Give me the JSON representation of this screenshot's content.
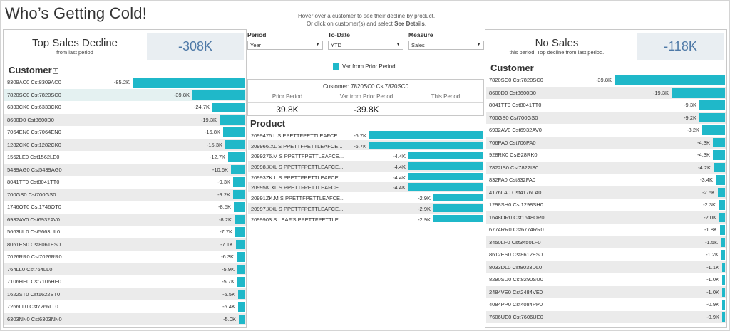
{
  "title": "Who’s Getting Cold!",
  "instructions": {
    "line1": "Hover over a customer to see their decline by product.",
    "line2_prefix": "Or click on customer(s) and select ",
    "line2_bold": "See Details",
    "line2_suffix": "."
  },
  "left": {
    "kpi_title": "Top Sales Decline",
    "kpi_sub": "from last period",
    "kpi_value": "-308K",
    "header": "Customer",
    "sort_icon": "sort-icon",
    "scale_max": 85.2,
    "rows": [
      {
        "label": "8309AC0  Cst8309AC0",
        "value": "-85.2K",
        "num": 85.2
      },
      {
        "label": "7820SC0  Cst7820SC0",
        "value": "-39.8K",
        "num": 39.8
      },
      {
        "label": "6333CK0  Cst6333CK0",
        "value": "-24.7K",
        "num": 24.7
      },
      {
        "label": "8600D0  Cst8600D0",
        "value": "-19.3K",
        "num": 19.3
      },
      {
        "label": "7064EN0  Cst7064EN0",
        "value": "-16.8K",
        "num": 16.8
      },
      {
        "label": "1282CK0  Cst1282CK0",
        "value": "-15.3K",
        "num": 15.3
      },
      {
        "label": "1562LE0  Cst1562LE0",
        "value": "-12.7K",
        "num": 12.7
      },
      {
        "label": "5439AG0  Cst5439AG0",
        "value": "-10.6K",
        "num": 10.6
      },
      {
        "label": "8041TT0  Cst8041TT0",
        "value": "-9.3K",
        "num": 9.3
      },
      {
        "label": "700GS0  Cst700GS0",
        "value": "-9.2K",
        "num": 9.2
      },
      {
        "label": "1746OT0  Cst1746OT0",
        "value": "-8.5K",
        "num": 8.5
      },
      {
        "label": "6932AV0  Cst6932AV0",
        "value": "-8.2K",
        "num": 8.2
      },
      {
        "label": "5663UL0  Cst5663UL0",
        "value": "-7.7K",
        "num": 7.7
      },
      {
        "label": "8061ES0  Cst8061ES0",
        "value": "-7.1K",
        "num": 7.1
      },
      {
        "label": "7026RR0  Cst7026RR0",
        "value": "-6.3K",
        "num": 6.3
      },
      {
        "label": "764LL0  Cst764LL0",
        "value": "-5.9K",
        "num": 5.9
      },
      {
        "label": "7106HE0  Cst7106HE0",
        "value": "-5.7K",
        "num": 5.7
      },
      {
        "label": "1622ST0  Cst1622ST0",
        "value": "-5.5K",
        "num": 5.5
      },
      {
        "label": "7266LL0  Cst7266LL0",
        "value": "-5.4K",
        "num": 5.4
      },
      {
        "label": "6303NN0  Cst6303NN0",
        "value": "-5.0K",
        "num": 5.0
      }
    ]
  },
  "filters": [
    {
      "label": "Period",
      "value": "Year"
    },
    {
      "label": "To-Date",
      "value": "YTD"
    },
    {
      "label": "Measure",
      "value": "Sales"
    }
  ],
  "legend": "Var from Prior Period",
  "detail": {
    "customer": "Customer:  7820SC0  Cst7820SC0",
    "col1": "Prior Period",
    "col2": "Var from Prior Period",
    "col3": "This Period",
    "val1": "39.8K",
    "val2": "-39.8K",
    "val3": ""
  },
  "product": {
    "header": "Product",
    "scale_max": 6.7,
    "rows": [
      {
        "label": "2099476.L   S PPETTFPETTLEAFCE...",
        "value": "-6.7K",
        "num": 6.7
      },
      {
        "label": "209966.XL   S PPETTFPETTLEAFCE...",
        "value": "-6.7K",
        "num": 6.7
      },
      {
        "label": "2099276.M   S PPETTFPETTLEAFCE...",
        "value": "-4.4K",
        "num": 4.4
      },
      {
        "label": "20998.XXL   S PPETTFPETTLEAFCE...",
        "value": "-4.4K",
        "num": 4.4
      },
      {
        "label": "20993ZK.L   S PPETTFPETTLEAFCE...",
        "value": "-4.4K",
        "num": 4.4
      },
      {
        "label": "20995K.XL   S PPETTFPETTLEAFCE...",
        "value": "-4.4K",
        "num": 4.4
      },
      {
        "label": "20991ZK.M   S PPETTFPETTLEAFCE...",
        "value": "-2.9K",
        "num": 2.9
      },
      {
        "label": "20997.XXL   S PPETTFPETTLEAFCE...",
        "value": "-2.9K",
        "num": 2.9
      },
      {
        "label": "2099903.S   LEAF'S PPETTFPETTLE...",
        "value": "-2.9K",
        "num": 2.9
      }
    ]
  },
  "right": {
    "kpi_title": "No Sales",
    "kpi_sub": "this period. Top decline from last period.",
    "kpi_value": "-118K",
    "header": "Customer",
    "scale_max": 39.8,
    "rows": [
      {
        "label": "7820SC0  Cst7820SC0",
        "value": "-39.8K",
        "num": 39.8
      },
      {
        "label": "8600D0  Cst8600D0",
        "value": "-19.3K",
        "num": 19.3
      },
      {
        "label": "8041TT0  Cst8041TT0",
        "value": "-9.3K",
        "num": 9.3
      },
      {
        "label": "700GS0  Cst700GS0",
        "value": "-9.2K",
        "num": 9.2
      },
      {
        "label": "6932AV0  Cst6932AV0",
        "value": "-8.2K",
        "num": 8.2
      },
      {
        "label": "706PA0  Cst706PA0",
        "value": "-4.3K",
        "num": 4.3
      },
      {
        "label": "928RK0  Cst928RK0",
        "value": "-4.3K",
        "num": 4.3
      },
      {
        "label": "7822IS0  Cst7822IS0",
        "value": "-4.2K",
        "num": 4.2
      },
      {
        "label": "832FA0  Cst832FA0",
        "value": "-3.4K",
        "num": 3.4
      },
      {
        "label": "4176LA0  Cst4176LA0",
        "value": "-2.5K",
        "num": 2.5
      },
      {
        "label": "1298SH0  Cst1298SH0",
        "value": "-2.3K",
        "num": 2.3
      },
      {
        "label": "1648OR0  Cst1648OR0",
        "value": "-2.0K",
        "num": 2.0
      },
      {
        "label": "6774RR0  Cst6774RR0",
        "value": "-1.8K",
        "num": 1.8
      },
      {
        "label": "3450LF0  Cst3450LF0",
        "value": "-1.5K",
        "num": 1.5
      },
      {
        "label": "8612ES0  Cst8612ES0",
        "value": "-1.2K",
        "num": 1.2
      },
      {
        "label": "8033DL0  Cst8033DL0",
        "value": "-1.1K",
        "num": 1.1
      },
      {
        "label": "8290SU0  Cst8290SU0",
        "value": "-1.0K",
        "num": 1.0
      },
      {
        "label": "2484VE0  Cst2484VE0",
        "value": "-1.0K",
        "num": 1.0
      },
      {
        "label": "4084PP0  Cst4084PP0",
        "value": "-0.9K",
        "num": 0.9
      },
      {
        "label": "7606UE0  Cst7606UE0",
        "value": "-0.9K",
        "num": 0.9
      }
    ]
  },
  "colors": {
    "bar": "#1fb8c9",
    "kpi_text": "#4e79a7",
    "kpi_bg": "#e9eef2"
  }
}
